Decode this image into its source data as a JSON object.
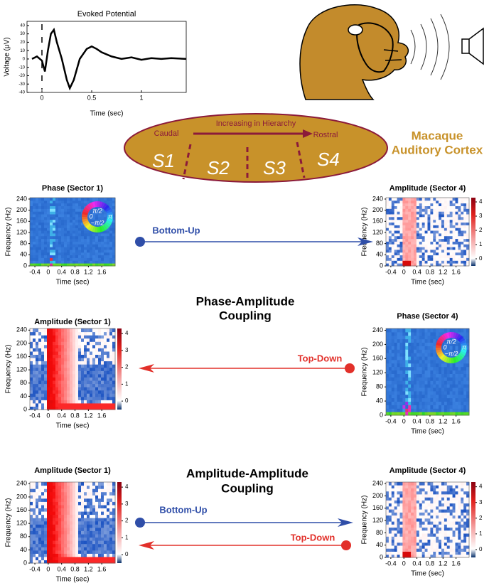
{
  "evoked": {
    "title": "Evoked Potential",
    "ylabel": "Voltage (μV)",
    "xlabel": "Time (sec)",
    "x": [
      -0.1,
      -0.05,
      0,
      0.03,
      0.06,
      0.09,
      0.12,
      0.15,
      0.2,
      0.25,
      0.28,
      0.32,
      0.38,
      0.45,
      0.5,
      0.55,
      0.6,
      0.7,
      0.8,
      0.9,
      1.0,
      1.1,
      1.2,
      1.3,
      1.45
    ],
    "values": [
      0,
      3,
      -2,
      -15,
      10,
      30,
      35,
      20,
      0,
      -25,
      -35,
      -25,
      0,
      12,
      15,
      12,
      8,
      3,
      0,
      2,
      -1,
      1,
      0,
      1,
      0
    ],
    "xlim": [
      -0.15,
      1.45
    ],
    "ylim": [
      -40,
      45
    ],
    "xticks": [
      0,
      0.5,
      1
    ],
    "yticks": [
      40,
      30,
      20,
      10,
      0,
      -10,
      -20,
      -30,
      -40
    ]
  },
  "cortex": {
    "arrow_label": "Increasing in Hierarchy",
    "left": "Caudal",
    "right": "Rostral",
    "sectors": [
      "S1",
      "S2",
      "S3",
      "S4"
    ],
    "title": [
      "Macaque",
      "Auditory Cortex"
    ]
  },
  "heatmap_axes": {
    "ylabel": "Frequency (Hz)",
    "xlabel": "Time (sec)",
    "yticks": [
      0,
      40,
      80,
      120,
      160,
      200,
      240
    ],
    "xticks": [
      -0.4,
      0,
      0.4,
      0.8,
      1.2,
      1.6
    ],
    "colorbar_ticks": [
      0,
      1,
      2,
      3,
      4
    ],
    "phase_labels": [
      "π/2",
      "0",
      "π",
      "−π/2"
    ]
  },
  "panels": [
    {
      "title": "Phase (Sector 1)",
      "kind": "phase"
    },
    {
      "title": "Amplitude (Sector 4)",
      "kind": "amp4"
    },
    {
      "title": "Amplitude (Sector 1)",
      "kind": "amp1"
    },
    {
      "title": "Phase (Sector 4)",
      "kind": "phase"
    },
    {
      "title": "Amplitude (Sector 1)",
      "kind": "amp1"
    },
    {
      "title": "Amplitude (Sector 4)",
      "kind": "amp4"
    }
  ],
  "couplings": [
    [
      "Phase-Amplitude",
      "Coupling"
    ],
    [
      "Amplitude-Amplitude",
      "Coupling"
    ]
  ],
  "arrows": [
    {
      "label": "Bottom-Up",
      "dir": "up"
    },
    {
      "label": "Top-Down",
      "dir": "down"
    },
    {
      "label": "Bottom-Up",
      "dir": "up"
    },
    {
      "label": "Top-Down",
      "dir": "down"
    }
  ]
}
